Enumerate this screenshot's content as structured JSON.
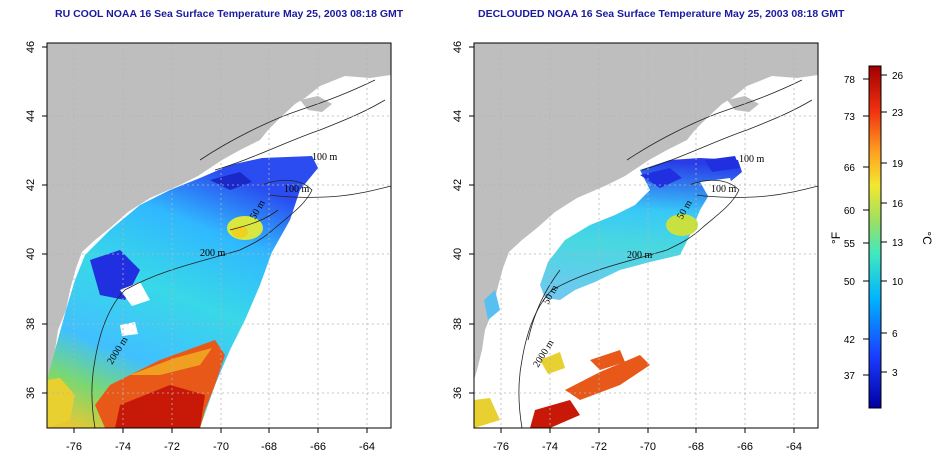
{
  "panels": [
    {
      "title": "RU COOL NOAA 16 Sea Surface Temperature May 25, 2003 08:18 GMT",
      "contour_labels": [
        "100 m",
        "100 m",
        "50 m",
        "200 m",
        "2000 m"
      ]
    },
    {
      "title": "DECLOUDED NOAA 16 Sea Surface Temperature May 25, 2003 08:18 GMT",
      "contour_labels": [
        "100 m",
        "100 m",
        "50 m",
        "200 m",
        "50 m",
        "2000 m"
      ]
    }
  ],
  "axes": {
    "x_ticks": [
      "-76",
      "-74",
      "-72",
      "-70",
      "-68",
      "-66",
      "-64"
    ],
    "y_ticks": [
      "36",
      "38",
      "40",
      "42",
      "44",
      "46"
    ]
  },
  "colorbar": {
    "fahrenheit_ticks": [
      "78",
      "73",
      "66",
      "60",
      "55",
      "50",
      "42",
      "37"
    ],
    "celsius_ticks": [
      "26",
      "23",
      "19",
      "16",
      "13",
      "10",
      "6",
      "3"
    ],
    "unit_f": "°F",
    "unit_c": "°C"
  },
  "colors": {
    "land": "#bebebe",
    "title": "#1a1aa0",
    "grid": "#b5b5b5"
  }
}
